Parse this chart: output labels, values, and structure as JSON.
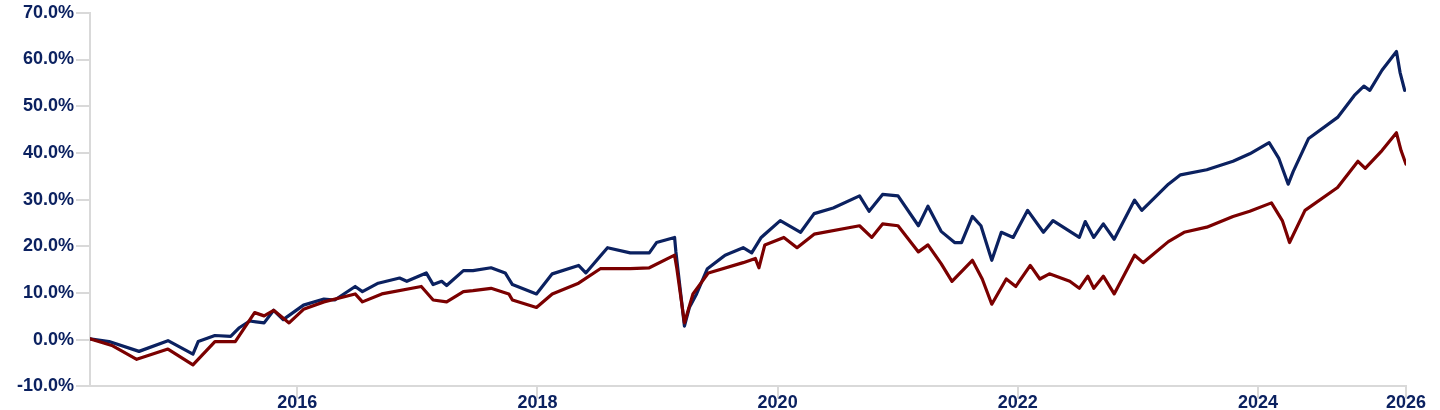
{
  "chart_data": {
    "type": "line",
    "xlim": [
      "2015-04-10",
      "2026-03-26"
    ],
    "ylim": [
      -10,
      70
    ],
    "xticks": [
      {
        "value": "2016-12-31",
        "label": "2016"
      },
      {
        "value": "2018-12-31",
        "label": "2018"
      },
      {
        "value": "2020-12-31",
        "label": "2020"
      },
      {
        "value": "2022-12-31",
        "label": "2022"
      },
      {
        "value": "2024-12-31",
        "label": "2024"
      },
      {
        "value": "2026-03-26",
        "label": "2026"
      }
    ],
    "yticks": [
      {
        "value": -10,
        "label": "-10.0%"
      },
      {
        "value": 0,
        "label": "0.0%"
      },
      {
        "value": 10,
        "label": "10.0%"
      },
      {
        "value": 20,
        "label": "20.0%"
      },
      {
        "value": 30,
        "label": "30.0%"
      },
      {
        "value": 40,
        "label": "40.0%"
      },
      {
        "value": 50,
        "label": "50.0%"
      },
      {
        "value": 60,
        "label": "60.0%"
      },
      {
        "value": 70,
        "label": "70.0%"
      }
    ],
    "grid": false,
    "legend": false,
    "marker": "none",
    "line_style": "solid",
    "series": [
      {
        "color": "#7b0000",
        "x": [
          "2015-04-10",
          "2015-06-18",
          "2015-08-30",
          "2015-12-03",
          "2016-02-17",
          "2016-04-24",
          "2016-06-25",
          "2016-08-23",
          "2016-09-21",
          "2016-10-20",
          "2016-12-06",
          "2017-01-19",
          "2017-03-22",
          "2017-06-25",
          "2017-07-17",
          "2017-09-14",
          "2018-01-12",
          "2018-02-17",
          "2018-03-30",
          "2018-05-20",
          "2018-06-18",
          "2018-08-12",
          "2018-10-05",
          "2018-10-16",
          "2018-12-28",
          "2019-02-14",
          "2019-05-05",
          "2019-07-10",
          "2019-10-09",
          "2019-12-06",
          "2020-02-21",
          "2020-02-28",
          "2020-03-22",
          "2020-04-17",
          "2020-06-03",
          "2020-09-17",
          "2020-10-24",
          "2020-11-04",
          "2020-11-22",
          "2021-01-19",
          "2021-02-28",
          "2021-04-21",
          "2021-09-06",
          "2021-10-13",
          "2021-11-15",
          "2022-01-01",
          "2022-03-04",
          "2022-04-02",
          "2022-05-12",
          "2022-06-14",
          "2022-08-15",
          "2022-09-14",
          "2022-10-13",
          "2022-11-26",
          "2022-12-25",
          "2023-02-07",
          "2023-03-08",
          "2023-04-06",
          "2023-06-07",
          "2023-07-06",
          "2023-08-01",
          "2023-08-19",
          "2023-09-17",
          "2023-10-20",
          "2023-12-21",
          "2024-01-16",
          "2024-04-02",
          "2024-05-20",
          "2024-07-28",
          "2024-10-16",
          "2024-12-06",
          "2025-02-10",
          "2025-03-15",
          "2025-04-06",
          "2025-05-23",
          "2025-08-30",
          "2025-10-31",
          "2025-11-22",
          "2026-01-12",
          "2026-02-25",
          "2026-03-11",
          "2026-03-26"
        ],
        "values": [
          0.2,
          -1.3,
          -4.2,
          -2.0,
          -5.4,
          -0.4,
          -0.4,
          5.8,
          5.1,
          6.3,
          3.6,
          6.5,
          8.1,
          9.8,
          8.1,
          9.8,
          11.4,
          8.5,
          8.1,
          10.3,
          10.5,
          11.0,
          9.8,
          8.5,
          6.9,
          9.8,
          12.1,
          15.2,
          15.2,
          15.4,
          18.1,
          15.2,
          3.6,
          9.8,
          14.3,
          16.5,
          17.4,
          15.4,
          20.3,
          21.9,
          19.7,
          22.6,
          24.4,
          21.9,
          24.8,
          24.4,
          18.8,
          20.3,
          16.3,
          12.5,
          17.0,
          13.0,
          7.6,
          13.0,
          11.4,
          15.9,
          13.0,
          14.1,
          12.5,
          11.0,
          13.6,
          11.0,
          13.6,
          9.8,
          18.1,
          16.5,
          21.0,
          23.0,
          24.1,
          26.4,
          27.5,
          29.3,
          25.5,
          20.8,
          27.7,
          32.6,
          38.2,
          36.7,
          40.5,
          44.3,
          40.5,
          37.6
        ]
      },
      {
        "color": "#0b2160",
        "x": [
          "2015-04-10",
          "2015-06-07",
          "2015-09-06",
          "2015-12-03",
          "2016-02-17",
          "2016-03-04",
          "2016-04-24",
          "2016-06-11",
          "2016-07-06",
          "2016-08-08",
          "2016-09-21",
          "2016-10-20",
          "2016-11-18",
          "2017-01-19",
          "2017-03-22",
          "2017-04-24",
          "2017-06-25",
          "2017-07-17",
          "2017-09-03",
          "2017-11-07",
          "2017-11-29",
          "2018-01-27",
          "2018-02-17",
          "2018-03-15",
          "2018-03-30",
          "2018-05-20",
          "2018-06-18",
          "2018-08-12",
          "2018-09-24",
          "2018-10-16",
          "2018-12-28",
          "2019-02-14",
          "2019-05-05",
          "2019-05-27",
          "2019-08-01",
          "2019-10-09",
          "2019-12-06",
          "2019-12-28",
          "2020-02-21",
          "2020-02-25",
          "2020-03-22",
          "2020-04-06",
          "2020-04-28",
          "2020-05-31",
          "2020-07-24",
          "2020-09-17",
          "2020-10-13",
          "2020-11-11",
          "2021-01-08",
          "2021-03-11",
          "2021-04-21",
          "2021-06-18",
          "2021-09-06",
          "2021-10-05",
          "2021-11-15",
          "2022-01-01",
          "2022-03-04",
          "2022-04-02",
          "2022-05-12",
          "2022-06-22",
          "2022-07-13",
          "2022-08-15",
          "2022-09-10",
          "2022-10-13",
          "2022-11-11",
          "2022-12-17",
          "2023-01-30",
          "2023-03-19",
          "2023-04-17",
          "2023-07-06",
          "2023-07-24",
          "2023-08-19",
          "2023-09-17",
          "2023-10-20",
          "2023-12-21",
          "2024-01-12",
          "2024-04-02",
          "2024-05-09",
          "2024-07-28",
          "2024-10-16",
          "2024-12-06",
          "2025-02-03",
          "2025-03-04",
          "2025-04-02",
          "2025-04-17",
          "2025-06-03",
          "2025-08-30",
          "2025-10-20",
          "2025-11-18",
          "2025-12-06",
          "2026-01-12",
          "2026-02-25",
          "2026-03-08",
          "2026-03-22"
        ],
        "values": [
          0.2,
          -0.4,
          -2.5,
          -0.2,
          -3.1,
          -0.4,
          0.9,
          0.7,
          2.5,
          4.0,
          3.6,
          6.3,
          4.3,
          7.4,
          8.7,
          8.5,
          11.4,
          10.3,
          12.1,
          13.2,
          12.5,
          14.3,
          11.8,
          12.5,
          11.6,
          14.8,
          14.8,
          15.4,
          14.3,
          11.8,
          9.8,
          14.1,
          15.9,
          14.3,
          19.7,
          18.6,
          18.6,
          20.8,
          21.9,
          18.8,
          2.9,
          6.9,
          9.8,
          15.2,
          18.1,
          19.7,
          18.6,
          21.9,
          25.5,
          23.0,
          27.0,
          28.2,
          30.8,
          27.5,
          31.1,
          30.8,
          24.4,
          28.6,
          23.2,
          20.8,
          20.8,
          26.4,
          24.4,
          17.0,
          23.0,
          21.9,
          27.7,
          23.0,
          25.5,
          21.9,
          25.3,
          21.9,
          24.8,
          21.5,
          29.9,
          27.7,
          33.3,
          35.3,
          36.4,
          38.2,
          39.8,
          42.2,
          38.9,
          33.3,
          36.0,
          43.1,
          47.6,
          52.3,
          54.3,
          53.4,
          57.7,
          61.7,
          57.2,
          53.4
        ]
      }
    ]
  }
}
